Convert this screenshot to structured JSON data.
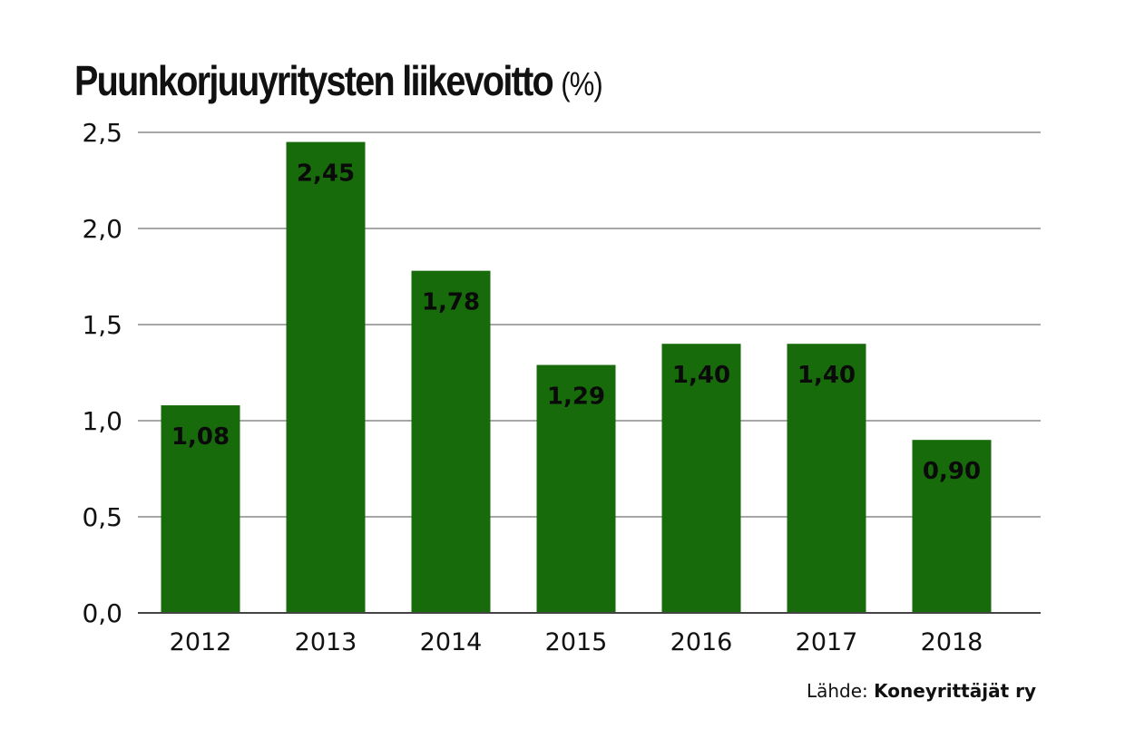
{
  "chart_data": {
    "type": "bar",
    "title": "Puunkorjuuyritysten liikevoitto",
    "title_unit": "(%)",
    "categories": [
      "2012",
      "2013",
      "2014",
      "2015",
      "2016",
      "2017",
      "2018"
    ],
    "values": [
      1.08,
      2.45,
      1.78,
      1.29,
      1.4,
      1.4,
      0.9
    ],
    "value_labels": [
      "1,08",
      "2,45",
      "1,78",
      "1,29",
      "1,40",
      "1,40",
      "0,90"
    ],
    "yticks": [
      0,
      0.5,
      1.0,
      1.5,
      2.0,
      2.5
    ],
    "ytick_labels": [
      "0,0",
      "0,5",
      "1,0",
      "1,5",
      "2,0",
      "2,5"
    ],
    "ylim": [
      0,
      2.5
    ],
    "xlabel": "",
    "ylabel": "",
    "grid": true,
    "bar_color": "#176b0a",
    "grid_color": "#8a8a8a"
  },
  "source": {
    "label": "Lähde:",
    "name": "Koneyrittäjät ry"
  }
}
